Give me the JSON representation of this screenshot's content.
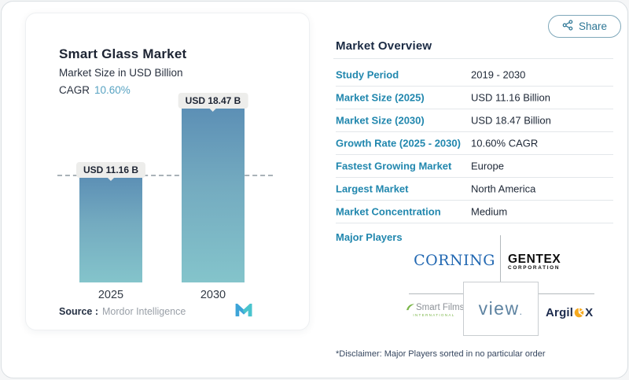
{
  "share": {
    "label": "Share"
  },
  "chart_panel": {
    "title": "Smart Glass Market",
    "subtitle": "Market Size in USD Billion",
    "cagr_label": "CAGR",
    "cagr_value": "10.60%",
    "source_label": "Source :",
    "source_value": "Mordor Intelligence"
  },
  "chart_data": {
    "type": "bar",
    "title": "Smart Glass Market",
    "subtitle": "Market Size in USD Billion",
    "ylabel": "USD Billion",
    "categories": [
      "2025",
      "2030"
    ],
    "values": [
      11.16,
      18.47
    ],
    "bar_labels": [
      "USD 11.16 B",
      "USD 18.47 B"
    ],
    "reference_line": 11.16,
    "grid": "off",
    "colors": {
      "bar_top": "#5c8fb5",
      "bar_bottom": "#84c4cb",
      "label_pill_bg": "#ededeb",
      "dashed_line": "#a9b2b8"
    }
  },
  "overview": {
    "heading": "Market Overview",
    "rows": [
      {
        "label": "Study Period",
        "value": "2019 - 2030"
      },
      {
        "label": "Market Size (2025)",
        "value": "USD 11.16 Billion"
      },
      {
        "label": "Market Size (2030)",
        "value": "USD 18.47 Billion"
      },
      {
        "label": "Growth Rate (2025 - 2030)",
        "value": "10.60% CAGR"
      },
      {
        "label": "Fastest Growing Market",
        "value": "Europe"
      },
      {
        "label": "Largest Market",
        "value": "North America"
      },
      {
        "label": "Market Concentration",
        "value": "Medium"
      }
    ],
    "major_players_label": "Major Players",
    "disclaimer": "*Disclaimer: Major Players sorted in no particular order"
  },
  "logos": {
    "corning": "CORNING",
    "gentex_line1": "GENTEX",
    "gentex_line2": "CORPORATION",
    "smartfilms_line1": "Smart Films",
    "smartfilms_line2": "INTERNATIONAL",
    "view": "view",
    "view_mark": ".",
    "argil_pre": "Argil",
    "argil_post": "X"
  },
  "colors": {
    "accent_blue": "#2187ae",
    "heading_navy": "#1b2b44",
    "cagr_value_blue": "#58a3c2",
    "share_teal": "#2e7796",
    "corning_blue": "#2268b2",
    "smartfilms_green": "#7ab648",
    "argil_orange": "#f6a91e",
    "mordor_blue": "#3da4d8",
    "mordor_teal": "#49c4cd"
  }
}
